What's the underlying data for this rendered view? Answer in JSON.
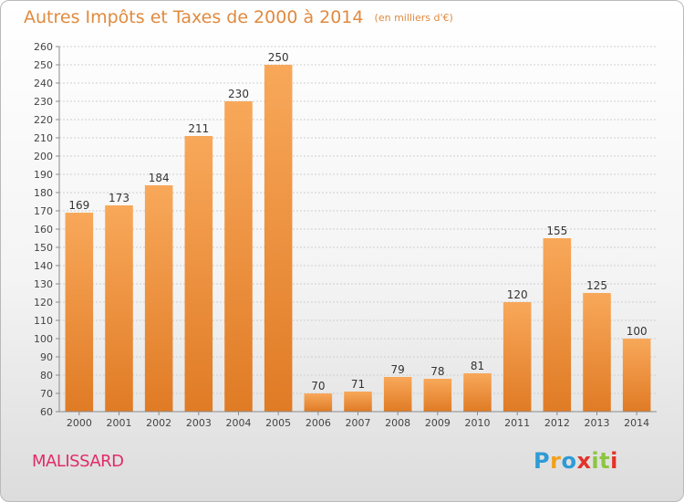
{
  "header": {
    "title": "Autres Impôts et Taxes de 2000 à 2014",
    "unit": "(en milliers d'€)"
  },
  "footer": {
    "town": "MALISSARD",
    "logo": [
      "P",
      "r",
      "o",
      "x",
      "i",
      "t",
      "i"
    ],
    "logo_colors": [
      "#2e9bd6",
      "#f2a01d",
      "#2e9bd6",
      "#e3322a",
      "#8cc63f",
      "#8cc63f",
      "#e3322a"
    ]
  },
  "colors": {
    "bar_light": "#f8a85a",
    "bar_dark": "#e07b25",
    "title": "#e08a3f",
    "town": "#e02c6a"
  },
  "chart_data": {
    "type": "bar",
    "title": "Autres Impôts et Taxes de 2000 à 2014",
    "subtitle": "(en milliers d'€)",
    "categories": [
      "2000",
      "2001",
      "2002",
      "2003",
      "2004",
      "2005",
      "2006",
      "2007",
      "2008",
      "2009",
      "2010",
      "2011",
      "2012",
      "2013",
      "2014"
    ],
    "values": [
      169,
      173,
      184,
      211,
      230,
      250,
      70,
      71,
      79,
      78,
      81,
      120,
      155,
      125,
      100
    ],
    "ylim": [
      60,
      260
    ],
    "yticks": [
      60,
      70,
      80,
      90,
      100,
      110,
      120,
      130,
      140,
      150,
      160,
      170,
      180,
      190,
      200,
      210,
      220,
      230,
      240,
      250,
      260
    ],
    "grid": true,
    "data_labels": true
  }
}
